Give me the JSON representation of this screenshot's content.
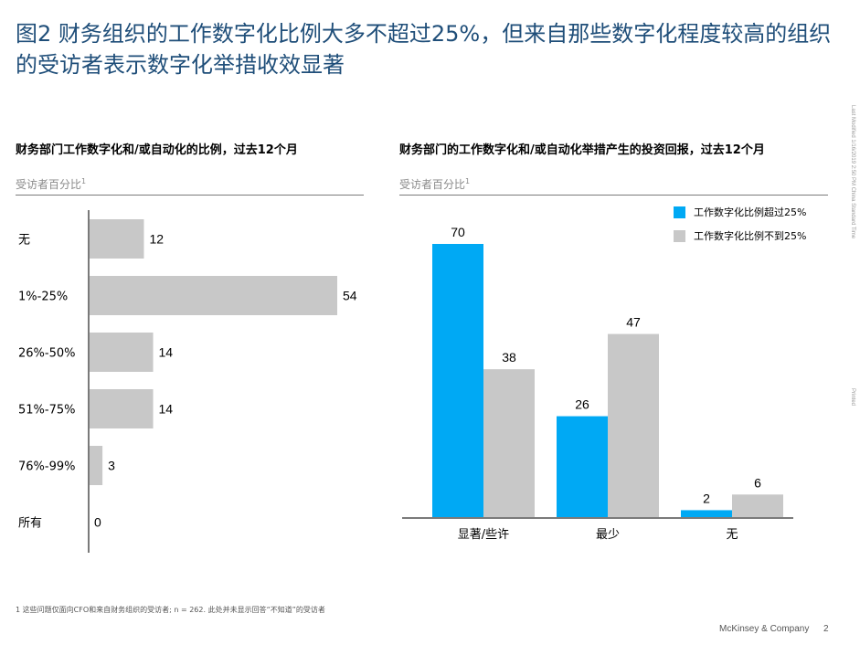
{
  "header": {
    "title": "图2 财务组织的工作数字化比例大多不超过25%，但来自那些数字化程度较高的组织的受访者表示数字化举措收效显著"
  },
  "left_panel": {
    "title": "财务部门工作数字化和/或自动化的比例，过去12个月",
    "subtitle": "受访者百分比",
    "footnote_mark": "1"
  },
  "right_panel": {
    "title": "财务部门的工作数字化和/或自动化举措产生的投资回报，过去12个月",
    "subtitle": "受访者百分比",
    "footnote_mark": "1"
  },
  "legend": [
    {
      "label": "工作数字化比例超过25%",
      "color": "#00a9f4"
    },
    {
      "label": "工作数字化比例不到25%",
      "color": "#c8c8c8"
    }
  ],
  "footer": {
    "footnote": "1 这些问题仅面向CFO和来自财务组织的受访者; n = 262. 此处并未显示回答“不知道”的受访者",
    "brand": "McKinsey & Company",
    "page": "2",
    "side_note": "Last Modified 1/16/2019 2:50 PM China Standard Time",
    "side_printed": "Printed"
  },
  "chart_data": [
    {
      "type": "bar",
      "orientation": "horizontal",
      "categories": [
        "无",
        "1%-25%",
        "26%-50%",
        "51%-75%",
        "76%-99%",
        "所有"
      ],
      "values": [
        12,
        54,
        14,
        14,
        3,
        0
      ],
      "color": "#c8c8c8",
      "xlim": [
        0,
        54
      ]
    },
    {
      "type": "bar",
      "categories": [
        "显著/些许",
        "最少",
        "无"
      ],
      "series": [
        {
          "name": "工作数字化比例超过25%",
          "values": [
            70,
            26,
            2
          ],
          "color": "#00a9f4"
        },
        {
          "name": "工作数字化比例不到25%",
          "values": [
            38,
            47,
            6
          ],
          "color": "#c8c8c8"
        }
      ],
      "ylim": [
        0,
        70
      ]
    }
  ]
}
